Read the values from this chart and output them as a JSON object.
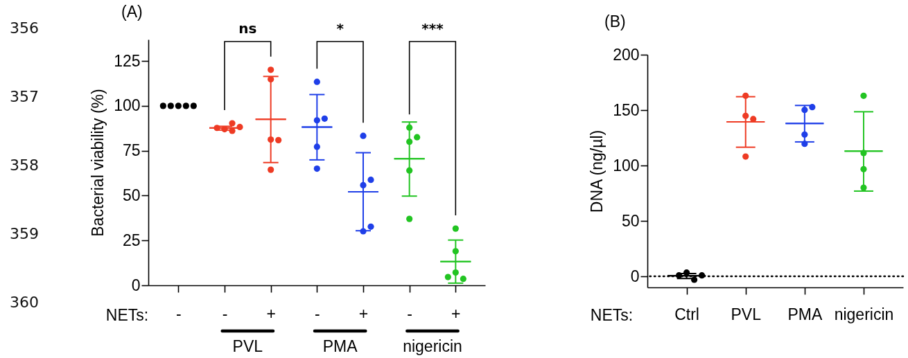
{
  "chart_data": [
    {
      "type": "scatter",
      "title": "(A)",
      "xlabel": "NETs:",
      "ylabel": "Bacterial viability (%)",
      "categories": [
        "-",
        "-",
        "+",
        "-",
        "+",
        "-",
        "+"
      ],
      "ylim": [
        0,
        137
      ],
      "yticks": [
        0,
        25,
        50,
        75,
        100,
        125
      ],
      "marker": "circle",
      "series": [
        {
          "colors": [
            "#000000",
            "#ee3b24",
            "#ee3b24",
            "#1f3fe8",
            "#1f3fe8",
            "#22c422",
            "#22c422"
          ],
          "values": [
            100,
            87.0,
            120.1,
            113.4,
            83.3,
            87.9,
            31.6
          ]
        },
        {
          "colors": [
            "#000000",
            "#ee3b24",
            "#ee3b24",
            "#1f3fe8",
            "#1f3fe8",
            "#22c422",
            "#22c422"
          ],
          "values": [
            100,
            90.3,
            114.8,
            91.9,
            55.8,
            80.0,
            19.0
          ]
        },
        {
          "colors": [
            "#000000",
            "#ee3b24",
            "#ee3b24",
            "#1f3fe8",
            "#1f3fe8",
            "#22c422",
            "#22c422"
          ],
          "values": [
            100,
            87.7,
            81.2,
            92.9,
            58.8,
            82.5,
            7.1
          ]
        },
        {
          "colors": [
            "#000000",
            "#ee3b24",
            "#ee3b24",
            "#1f3fe8",
            "#1f3fe8",
            "#22c422",
            "#22c422"
          ],
          "values": [
            100,
            88.2,
            80.9,
            77.2,
            30.1,
            64.0,
            3.6
          ]
        },
        {
          "colors": [
            "#000000",
            "#ee3b24",
            "#ee3b24",
            "#1f3fe8",
            "#1f3fe8",
            "#22c422",
            "#22c422"
          ],
          "values": [
            100,
            86.1,
            64.4,
            65.0,
            32.7,
            37.0,
            4.6
          ]
        },
        {
          "type": "box",
          "colors": [
            "#000000",
            "#ee3b24",
            "#ee3b24",
            "#1f3fe8",
            "#1f3fe8",
            "#22c422",
            "#22c422"
          ],
          "boxes": [
            null,
            {
              "low": 86.5,
              "q1": 87.7,
              "median": 87.7,
              "q3": 87.7,
              "high": 88.6
            },
            {
              "low": 68.4,
              "q1": 92.5,
              "median": 92.5,
              "q3": 92.5,
              "high": 116.4
            },
            {
              "low": 69.9,
              "q1": 88.2,
              "median": 88.2,
              "q3": 88.2,
              "high": 106.3
            },
            {
              "low": 30.4,
              "q1": 52.1,
              "median": 52.1,
              "q3": 52.1,
              "high": 73.9
            },
            {
              "low": 49.7,
              "q1": 70.5,
              "median": 70.5,
              "q3": 70.5,
              "high": 91.0
            },
            {
              "low": 1.2,
              "q1": 13.2,
              "median": 13.2,
              "q3": 13.2,
              "high": 25.2
            }
          ]
        }
      ],
      "annotations": [
        "ns",
        "*",
        "***",
        "PVL",
        "PMA",
        "nigericin",
        "356",
        "357",
        "358",
        "359",
        "360"
      ]
    },
    {
      "type": "scatter",
      "title": "(B)",
      "xlabel": "NETs:",
      "ylabel": "DNA (ng/µl)",
      "categories": [
        "Ctrl",
        "PVL",
        "PMA",
        "nigericin"
      ],
      "ylim": [
        -10,
        200
      ],
      "yticks": [
        0,
        50,
        100,
        150,
        200
      ],
      "marker": "circle",
      "ref_lines": [
        {
          "axis": "y",
          "value": 0,
          "line_style": "dotted",
          "color": "#000000"
        }
      ],
      "series": [
        {
          "colors": [
            "#000000",
            "#ee3b24",
            "#1f3fe8",
            "#22c422"
          ],
          "values": [
            3.3,
            162.9,
            150.2,
            162.9
          ]
        },
        {
          "colors": [
            "#000000",
            "#ee3b24",
            "#1f3fe8",
            "#22c422"
          ],
          "values": [
            -3.1,
            144.8,
            152.7,
            111.3
          ]
        },
        {
          "colors": [
            "#000000",
            "#ee3b24",
            "#1f3fe8",
            "#22c422"
          ],
          "values": [
            0.8,
            141.9,
            127.9,
            96.7
          ]
        },
        {
          "colors": [
            "#000000",
            "#ee3b24",
            "#1f3fe8",
            "#22c422"
          ],
          "values": [
            0.8,
            108.1,
            119.6,
            80.0
          ]
        },
        {
          "type": "box",
          "colors": [
            "#000000",
            "#ee3b24",
            "#1f3fe8",
            "#22c422"
          ],
          "boxes": [
            {
              "low": -2,
              "q1": 0.5,
              "median": 0.5,
              "q3": 0.5,
              "high": 2.5
            },
            {
              "low": 116.5,
              "q1": 139.4,
              "median": 139.4,
              "q3": 139.4,
              "high": 162.1
            },
            {
              "low": 121.3,
              "q1": 137.9,
              "median": 137.9,
              "q3": 137.9,
              "high": 154.2
            },
            {
              "low": 76.9,
              "q1": 112.9,
              "median": 112.9,
              "q3": 112.9,
              "high": 148.5
            }
          ]
        }
      ]
    }
  ]
}
